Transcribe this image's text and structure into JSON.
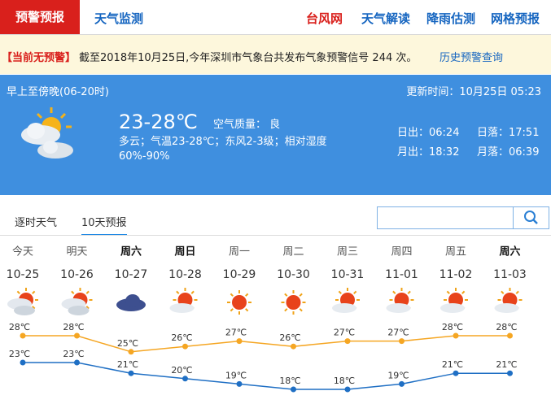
{
  "header": {
    "tabs": [
      "预警预报",
      "天气监测"
    ],
    "links": [
      "台风网",
      "天气解读",
      "降雨估测",
      "网格预报"
    ]
  },
  "alert": {
    "status": "【当前无预警】",
    "text": "截至2018年10月25日,今年深圳市气象台共发布气象预警信号 244 次。",
    "link": "历史预警查询"
  },
  "today": {
    "period": "早上至傍晚(06-20时)",
    "updated": "更新时间：10月25日 05:23",
    "temp": "23-28℃",
    "air": "空气质量： 良",
    "desc": "多云；气温23-28℃；东风2-3级；相对湿度60%-90%",
    "sunrise": "日出：06:24",
    "sunset": "日落：17:51",
    "moonrise": "月出：18:32",
    "moonset": "月落：06:39"
  },
  "forecast_tabs": [
    "逐时天气",
    "10天预报"
  ],
  "chart_data": {
    "type": "line",
    "weekdays": [
      "今天",
      "明天",
      "周六",
      "周日",
      "周一",
      "周二",
      "周三",
      "周四",
      "周五",
      "周六"
    ],
    "categories": [
      "10-25",
      "10-26",
      "10-27",
      "10-28",
      "10-29",
      "10-30",
      "10-31",
      "11-01",
      "11-02",
      "11-03"
    ],
    "series": [
      {
        "color": "#f5a623",
        "values": [
          28,
          28,
          25,
          26,
          27,
          26,
          27,
          27,
          28,
          28
        ],
        "value_labels": [
          "28℃",
          "28℃",
          "25℃",
          "26℃",
          "27℃",
          "26℃",
          "27℃",
          "27℃",
          "28℃",
          "28℃"
        ]
      },
      {
        "color": "#1f6fc4",
        "values": [
          23,
          23,
          21,
          20,
          19,
          18,
          18,
          19,
          21,
          21
        ],
        "value_labels": [
          "23℃",
          "23℃",
          "21℃",
          "20℃",
          "19℃",
          "18℃",
          "18℃",
          "19℃",
          "21℃",
          "21℃"
        ]
      }
    ]
  }
}
